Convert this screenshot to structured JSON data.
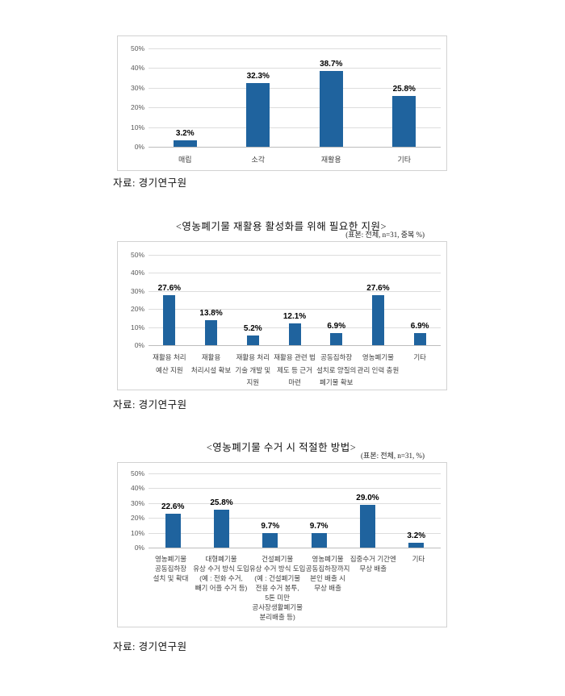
{
  "page": {
    "background": "#ffffff",
    "source_note": "자료: 경기연구원"
  },
  "chart_data": [
    {
      "type": "bar",
      "title": "",
      "subtitle": "",
      "source": "자료: 경기연구원",
      "categories": [
        [
          "매립"
        ],
        [
          "소각"
        ],
        [
          "재활용"
        ],
        [
          "기타"
        ]
      ],
      "values": [
        3.2,
        32.3,
        38.7,
        25.8
      ],
      "value_labels": [
        "3.2%",
        "32.3%",
        "38.7%",
        "25.8%"
      ],
      "y_ticks": [
        0,
        10,
        20,
        30,
        40,
        50
      ],
      "y_tick_labels": [
        "0%",
        "10%",
        "20%",
        "30%",
        "40%",
        "50%"
      ],
      "ylim": [
        0,
        50
      ],
      "bar_color": "#1f639e",
      "grid": true,
      "legend": null
    },
    {
      "type": "bar",
      "title": "<영농폐기물 재활용 활성화를 위해 필요한 지원>",
      "subtitle": "(표본: 전체, n=31, 중복 %)",
      "source": "자료: 경기연구원",
      "categories": [
        [
          "재활용 처리",
          "예산 지원"
        ],
        [
          "재활용",
          "처리시설 확보"
        ],
        [
          "재활용 처리",
          "기술 개발 및",
          "지원"
        ],
        [
          "재활용 관련 법",
          "제도 등 근거",
          "마련"
        ],
        [
          "공동집하장",
          "설치로 양질의",
          "폐기물 확보"
        ],
        [
          "영농폐기물",
          "관리 인력 충원"
        ],
        [
          "기타"
        ]
      ],
      "values": [
        27.6,
        13.8,
        5.2,
        12.1,
        6.9,
        27.6,
        6.9
      ],
      "value_labels": [
        "27.6%",
        "13.8%",
        "5.2%",
        "12.1%",
        "6.9%",
        "27.6%",
        "6.9%"
      ],
      "y_ticks": [
        0,
        10,
        20,
        30,
        40,
        50
      ],
      "y_tick_labels": [
        "0%",
        "10%",
        "20%",
        "30%",
        "40%",
        "50%"
      ],
      "ylim": [
        0,
        50
      ],
      "bar_color": "#1f639e",
      "grid": true,
      "legend": null
    },
    {
      "type": "bar",
      "title": "<영농폐기물 수거 시 적절한 방법>",
      "subtitle": "(표본: 전체, n=31, %)",
      "source": "자료: 경기연구원",
      "categories": [
        [
          "영농폐기물",
          "공동집하장",
          "설치 및 확대"
        ],
        [
          "대형폐기물",
          "유상 수거 방식 도입",
          "(예 : 전화 수거,",
          "빼기 어플 수거 등)"
        ],
        [
          "건설폐기물",
          "유상 수거 방식 도입",
          "(예 : 건설폐기물",
          "전용 수거 봉투,",
          "5톤 미만",
          "공사장생활폐기물",
          "분리배출 등)"
        ],
        [
          "영농폐기물",
          "공동집하장까지",
          "본인 배출 시",
          "무상 배출"
        ],
        [
          "집중수거 기간엔",
          "무상 배출"
        ],
        [
          "기타"
        ]
      ],
      "values": [
        22.6,
        25.8,
        9.7,
        9.7,
        29.0,
        3.2
      ],
      "value_labels": [
        "22.6%",
        "25.8%",
        "9.7%",
        "9.7%",
        "29.0%",
        "3.2%"
      ],
      "y_ticks": [
        0,
        10,
        20,
        30,
        40,
        50
      ],
      "y_tick_labels": [
        "0%",
        "10%",
        "20%",
        "30%",
        "40%",
        "50%"
      ],
      "ylim": [
        0,
        50
      ],
      "bar_color": "#1f639e",
      "grid": true,
      "legend": null
    }
  ]
}
